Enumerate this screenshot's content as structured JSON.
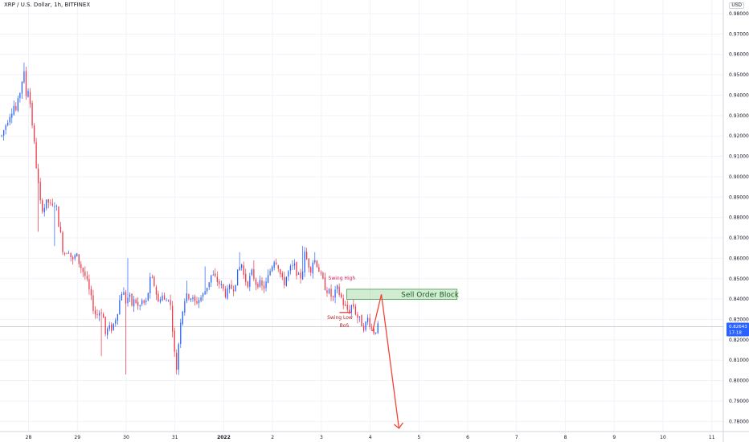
{
  "header": {
    "title": "XRP / U.S. Dollar, 1h, BITFINEX",
    "currency": "USD"
  },
  "chart_data": {
    "type": "candlestick",
    "symbol": "XRP / U.S. Dollar",
    "interval": "1h",
    "exchange": "BITFINEX",
    "ylim": [
      0.775,
      0.9867
    ],
    "yticks": [
      "0.98000",
      "0.97000",
      "0.96000",
      "0.95000",
      "0.94000",
      "0.93000",
      "0.92000",
      "0.91000",
      "0.90000",
      "0.89000",
      "0.88000",
      "0.87000",
      "0.86000",
      "0.85000",
      "0.84000",
      "0.83000",
      "0.82000",
      "0.81000",
      "0.80000",
      "0.79000",
      "0.78000"
    ],
    "xticks": [
      {
        "label": "28",
        "day": 0
      },
      {
        "label": "29",
        "day": 1
      },
      {
        "label": "30",
        "day": 2
      },
      {
        "label": "31",
        "day": 3
      },
      {
        "label": "2022",
        "day": 4,
        "bold": true
      },
      {
        "label": "2",
        "day": 5
      },
      {
        "label": "3",
        "day": 6
      },
      {
        "label": "4",
        "day": 7
      },
      {
        "label": "5",
        "day": 8
      },
      {
        "label": "6",
        "day": 9
      },
      {
        "label": "7",
        "day": 10
      },
      {
        "label": "8",
        "day": 11
      },
      {
        "label": "9",
        "day": 12
      },
      {
        "label": "10",
        "day": 13
      },
      {
        "label": "11",
        "day": 14
      }
    ],
    "current_price": {
      "value": 0.82643,
      "label": "0.82643",
      "countdown": "17:18"
    },
    "up_color": "#2962ff",
    "down_color": "#f23645",
    "key_path": [
      [
        -0.55,
        0.92
      ],
      [
        -0.4,
        0.93
      ],
      [
        -0.3,
        0.935
      ],
      [
        -0.25,
        0.932
      ],
      [
        -0.15,
        0.945
      ],
      [
        -0.1,
        0.952
      ],
      [
        -0.05,
        0.94
      ],
      [
        0.0,
        0.944
      ],
      [
        0.05,
        0.932
      ],
      [
        0.12,
        0.915
      ],
      [
        0.18,
        0.9
      ],
      [
        0.25,
        0.885
      ],
      [
        0.32,
        0.885
      ],
      [
        0.4,
        0.888
      ],
      [
        0.48,
        0.884
      ],
      [
        0.55,
        0.888
      ],
      [
        0.62,
        0.877
      ],
      [
        0.72,
        0.862
      ],
      [
        0.82,
        0.865
      ],
      [
        0.9,
        0.858
      ],
      [
        0.97,
        0.862
      ],
      [
        1.05,
        0.857
      ],
      [
        1.15,
        0.852
      ],
      [
        1.22,
        0.846
      ],
      [
        1.3,
        0.838
      ],
      [
        1.38,
        0.832
      ],
      [
        1.46,
        0.834
      ],
      [
        1.52,
        0.835
      ],
      [
        1.56,
        0.822
      ],
      [
        1.62,
        0.825
      ],
      [
        1.72,
        0.826
      ],
      [
        1.8,
        0.832
      ],
      [
        1.92,
        0.845
      ],
      [
        2.0,
        0.838
      ],
      [
        2.05,
        0.842
      ],
      [
        2.12,
        0.837
      ],
      [
        2.18,
        0.84
      ],
      [
        2.26,
        0.835
      ],
      [
        2.32,
        0.839
      ],
      [
        2.4,
        0.837
      ],
      [
        2.5,
        0.85
      ],
      [
        2.58,
        0.847
      ],
      [
        2.66,
        0.838
      ],
      [
        2.72,
        0.843
      ],
      [
        2.8,
        0.838
      ],
      [
        2.88,
        0.842
      ],
      [
        2.94,
        0.83
      ],
      [
        2.98,
        0.815
      ],
      [
        3.04,
        0.805
      ],
      [
        3.1,
        0.828
      ],
      [
        3.2,
        0.84
      ],
      [
        3.3,
        0.842
      ],
      [
        3.4,
        0.838
      ],
      [
        3.5,
        0.84
      ],
      [
        3.58,
        0.842
      ],
      [
        3.65,
        0.846
      ],
      [
        3.75,
        0.852
      ],
      [
        3.82,
        0.85
      ],
      [
        3.9,
        0.848
      ],
      [
        3.98,
        0.845
      ],
      [
        4.05,
        0.842
      ],
      [
        4.12,
        0.845
      ],
      [
        4.2,
        0.846
      ],
      [
        4.28,
        0.852
      ],
      [
        4.36,
        0.858
      ],
      [
        4.42,
        0.85
      ],
      [
        4.5,
        0.848
      ],
      [
        4.58,
        0.853
      ],
      [
        4.66,
        0.848
      ],
      [
        4.72,
        0.848
      ],
      [
        4.8,
        0.845
      ],
      [
        4.88,
        0.848
      ],
      [
        4.96,
        0.855
      ],
      [
        5.04,
        0.86
      ],
      [
        5.1,
        0.858
      ],
      [
        5.16,
        0.852
      ],
      [
        5.22,
        0.847
      ],
      [
        5.3,
        0.852
      ],
      [
        5.38,
        0.855
      ],
      [
        5.46,
        0.856
      ],
      [
        5.54,
        0.85
      ],
      [
        5.6,
        0.852
      ],
      [
        5.66,
        0.862
      ],
      [
        5.72,
        0.858
      ],
      [
        5.78,
        0.855
      ],
      [
        5.84,
        0.86
      ],
      [
        5.92,
        0.857
      ],
      [
        6.0,
        0.85
      ],
      [
        6.08,
        0.846
      ],
      [
        6.16,
        0.843
      ],
      [
        6.24,
        0.84
      ],
      [
        6.32,
        0.845
      ],
      [
        6.4,
        0.841
      ],
      [
        6.48,
        0.836
      ],
      [
        6.56,
        0.834
      ],
      [
        6.64,
        0.838
      ],
      [
        6.72,
        0.832
      ],
      [
        6.8,
        0.829
      ],
      [
        6.88,
        0.826
      ],
      [
        6.96,
        0.831
      ],
      [
        7.02,
        0.826
      ],
      [
        7.08,
        0.824
      ],
      [
        7.14,
        0.826
      ]
    ],
    "spikes": [
      {
        "day": -0.1,
        "high": 0.956
      },
      {
        "day": 0.22,
        "high": 0.89,
        "low": 0.873
      },
      {
        "day": 0.52,
        "low": 0.866
      },
      {
        "day": 1.5,
        "low": 0.812
      },
      {
        "day": 1.98,
        "low": 0.803
      },
      {
        "day": 2.03,
        "high": 0.86
      },
      {
        "day": 3.02,
        "low": 0.803
      },
      {
        "day": 3.24,
        "high": 0.849
      },
      {
        "day": 3.62,
        "high": 0.856
      },
      {
        "day": 4.32,
        "high": 0.863
      },
      {
        "day": 4.62,
        "high": 0.859
      },
      {
        "day": 5.63,
        "high": 0.866
      },
      {
        "day": 5.86,
        "high": 0.863
      }
    ],
    "annotations": {
      "swing_high": {
        "text": "Swing High",
        "day": 6.42,
        "price": 0.8495
      },
      "swing_low": {
        "text": "Swing Low",
        "day": 6.38,
        "price": 0.8302
      },
      "bos": {
        "text": "BoS",
        "day": 6.47,
        "price": 0.8262
      },
      "bos_line": {
        "day_start": 6.37,
        "day_end": 6.62,
        "price": 0.8334
      },
      "sell_order_block": {
        "text": "Sell Order Block",
        "day_start": 6.52,
        "day_end": 8.78,
        "price_top": 0.8448,
        "price_bottom": 0.8398
      },
      "projection": [
        [
          7.05,
          0.8242
        ],
        [
          7.23,
          0.8423
        ],
        [
          7.59,
          0.7766
        ]
      ]
    }
  }
}
